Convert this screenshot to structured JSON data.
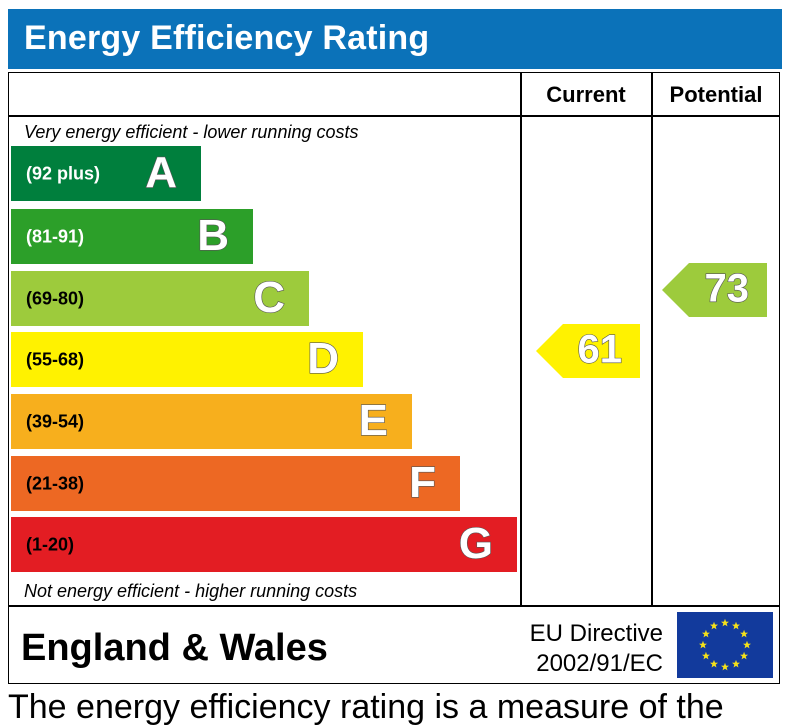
{
  "header": {
    "title": "Energy Efficiency Rating"
  },
  "columns": {
    "current": "Current",
    "potential": "Potential"
  },
  "captions": {
    "top": "Very energy efficient - lower running costs",
    "bottom": "Not energy efficient - higher running costs"
  },
  "footer": {
    "region": "England & Wales",
    "directive_line1": "EU Directive",
    "directive_line2": "2002/91/EC",
    "flag_icon": "eu-flag-icon"
  },
  "below_text": "The energy efficiency rating is a measure of the",
  "chart_data": {
    "type": "bar",
    "title": "Energy Efficiency Rating",
    "orientation": "horizontal",
    "categories": [
      "A",
      "B",
      "C",
      "D",
      "E",
      "F",
      "G"
    ],
    "bands": [
      {
        "letter": "A",
        "range": "(92 plus)",
        "min": 92,
        "max": 100,
        "color": "#007f3d",
        "text_color": "#ffffff"
      },
      {
        "letter": "B",
        "range": "(81-91)",
        "min": 81,
        "max": 91,
        "color": "#2c9f29",
        "text_color": "#ffffff"
      },
      {
        "letter": "C",
        "range": "(69-80)",
        "min": 69,
        "max": 80,
        "color": "#9dcb3c",
        "text_color": "#000000"
      },
      {
        "letter": "D",
        "range": "(55-68)",
        "min": 55,
        "max": 68,
        "color": "#fff200",
        "text_color": "#000000"
      },
      {
        "letter": "E",
        "range": "(39-54)",
        "min": 39,
        "max": 54,
        "color": "#f7af1d",
        "text_color": "#000000"
      },
      {
        "letter": "F",
        "range": "(21-38)",
        "min": 21,
        "max": 38,
        "color": "#ed6823",
        "text_color": "#000000"
      },
      {
        "letter": "G",
        "range": "(1-20)",
        "min": 1,
        "max": 20,
        "color": "#e31d23",
        "text_color": "#000000"
      }
    ],
    "series": [
      {
        "name": "Current",
        "value": 61,
        "band": "D",
        "color": "#fff200"
      },
      {
        "name": "Potential",
        "value": 73,
        "band": "C",
        "color": "#9dcb3c"
      }
    ],
    "legend": "none"
  }
}
